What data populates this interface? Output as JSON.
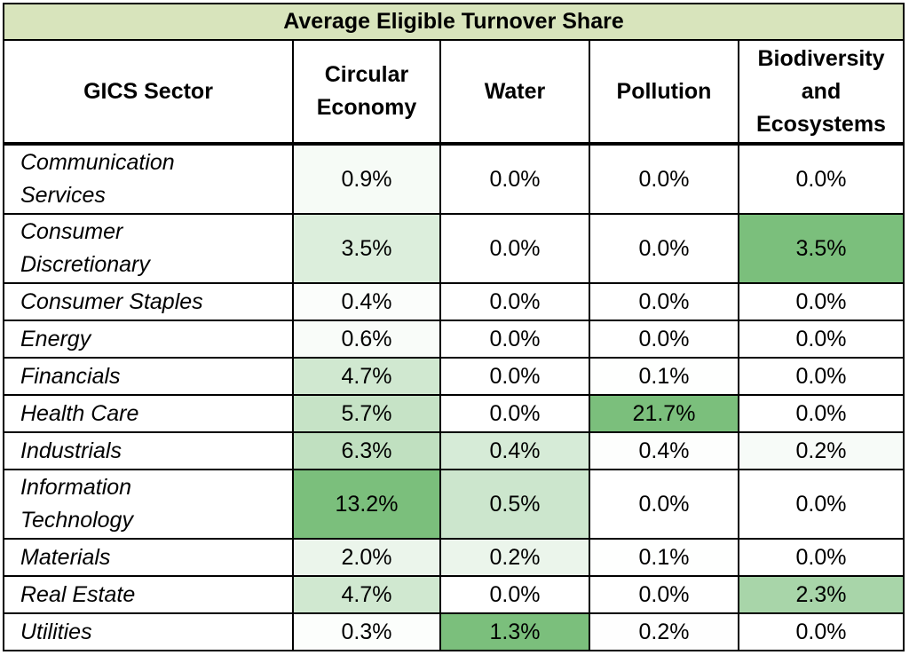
{
  "title": "Average Eligible Turnover Share",
  "headers": {
    "sector": "GICS Sector",
    "circular_economy": "Circular Economy",
    "water": "Water",
    "pollution": "Pollution",
    "biodiversity": "Biodiversity and Ecosystems"
  },
  "rows": [
    {
      "sector": "Communication Services",
      "circular_economy": "0.9%",
      "water": "0.0%",
      "pollution": "0.0%",
      "biodiversity": "0.0%"
    },
    {
      "sector": "Consumer Discretionary",
      "circular_economy": "3.5%",
      "water": "0.0%",
      "pollution": "0.0%",
      "biodiversity": "3.5%"
    },
    {
      "sector": "Consumer Staples",
      "circular_economy": "0.4%",
      "water": "0.0%",
      "pollution": "0.0%",
      "biodiversity": "0.0%"
    },
    {
      "sector": "Energy",
      "circular_economy": "0.6%",
      "water": "0.0%",
      "pollution": "0.0%",
      "biodiversity": "0.0%"
    },
    {
      "sector": "Financials",
      "circular_economy": "4.7%",
      "water": "0.0%",
      "pollution": "0.1%",
      "biodiversity": "0.0%"
    },
    {
      "sector": "Health Care",
      "circular_economy": "5.7%",
      "water": "0.0%",
      "pollution": "21.7%",
      "biodiversity": "0.0%"
    },
    {
      "sector": "Industrials",
      "circular_economy": "6.3%",
      "water": "0.4%",
      "pollution": "0.4%",
      "biodiversity": "0.2%"
    },
    {
      "sector": "Information Technology",
      "circular_economy": "13.2%",
      "water": "0.5%",
      "pollution": "0.0%",
      "biodiversity": "0.0%"
    },
    {
      "sector": "Materials",
      "circular_economy": "2.0%",
      "water": "0.2%",
      "pollution": "0.1%",
      "biodiversity": "0.0%"
    },
    {
      "sector": "Real Estate",
      "circular_economy": "4.7%",
      "water": "0.0%",
      "pollution": "0.0%",
      "biodiversity": "2.3%"
    },
    {
      "sector": "Utilities",
      "circular_economy": "0.3%",
      "water": "1.3%",
      "pollution": "0.2%",
      "biodiversity": "0.0%"
    }
  ],
  "colors": {
    "title_background": "#d8e4bc",
    "heat_low": "#ffffff",
    "heat_high": "#7bbf7c"
  }
}
